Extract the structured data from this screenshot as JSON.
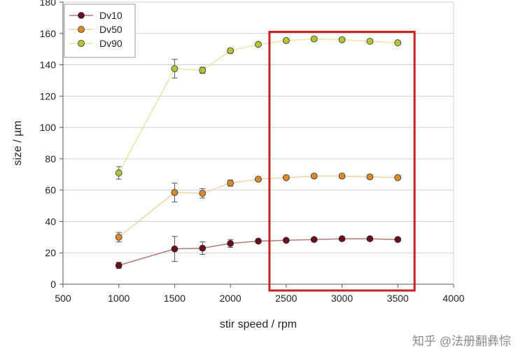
{
  "chart_data": {
    "type": "line",
    "xlabel": "stir speed / rpm",
    "ylabel": "size / µm",
    "xlim": [
      500,
      4000
    ],
    "ylim": [
      0,
      180
    ],
    "xticks": [
      500,
      1000,
      1500,
      2000,
      2500,
      3000,
      3500,
      4000
    ],
    "yticks": [
      0,
      20,
      40,
      60,
      80,
      100,
      120,
      140,
      160,
      180
    ],
    "grid": "horizontal",
    "legend_position": "top-left",
    "x": [
      1000,
      1500,
      1750,
      2000,
      2250,
      2500,
      2750,
      3000,
      3250,
      3500
    ],
    "series": [
      {
        "name": "Dv10",
        "color": "#6b0f1a",
        "line_color": "#b07a7a",
        "values": [
          12,
          22.5,
          23,
          26,
          27.5,
          28,
          28.5,
          29,
          29,
          28.5
        ],
        "errors": [
          2,
          8,
          4,
          2.5,
          1,
          1,
          0.5,
          0.5,
          0.5,
          0.5
        ]
      },
      {
        "name": "Dv50",
        "color": "#d98a2b",
        "line_color": "#efd3a6",
        "values": [
          30,
          58.5,
          58,
          64.5,
          67,
          68,
          69,
          69,
          68.5,
          68
        ],
        "errors": [
          3,
          6,
          3,
          2,
          1,
          1,
          1,
          1,
          1,
          1
        ]
      },
      {
        "name": "Dv90",
        "color": "#b5c234",
        "line_color": "#e6e6a6",
        "values": [
          71,
          137.5,
          136.5,
          149,
          153,
          155.5,
          156.5,
          156,
          155,
          154
        ],
        "errors": [
          4,
          6,
          2,
          1.5,
          1,
          1,
          1,
          1,
          1,
          1
        ]
      }
    ],
    "highlight": {
      "x_range": [
        2350,
        3650
      ],
      "y_range": [
        0,
        161
      ],
      "color": "#cc1f1f"
    }
  },
  "watermark": {
    "text": "知乎 @法册翻彝悰"
  }
}
